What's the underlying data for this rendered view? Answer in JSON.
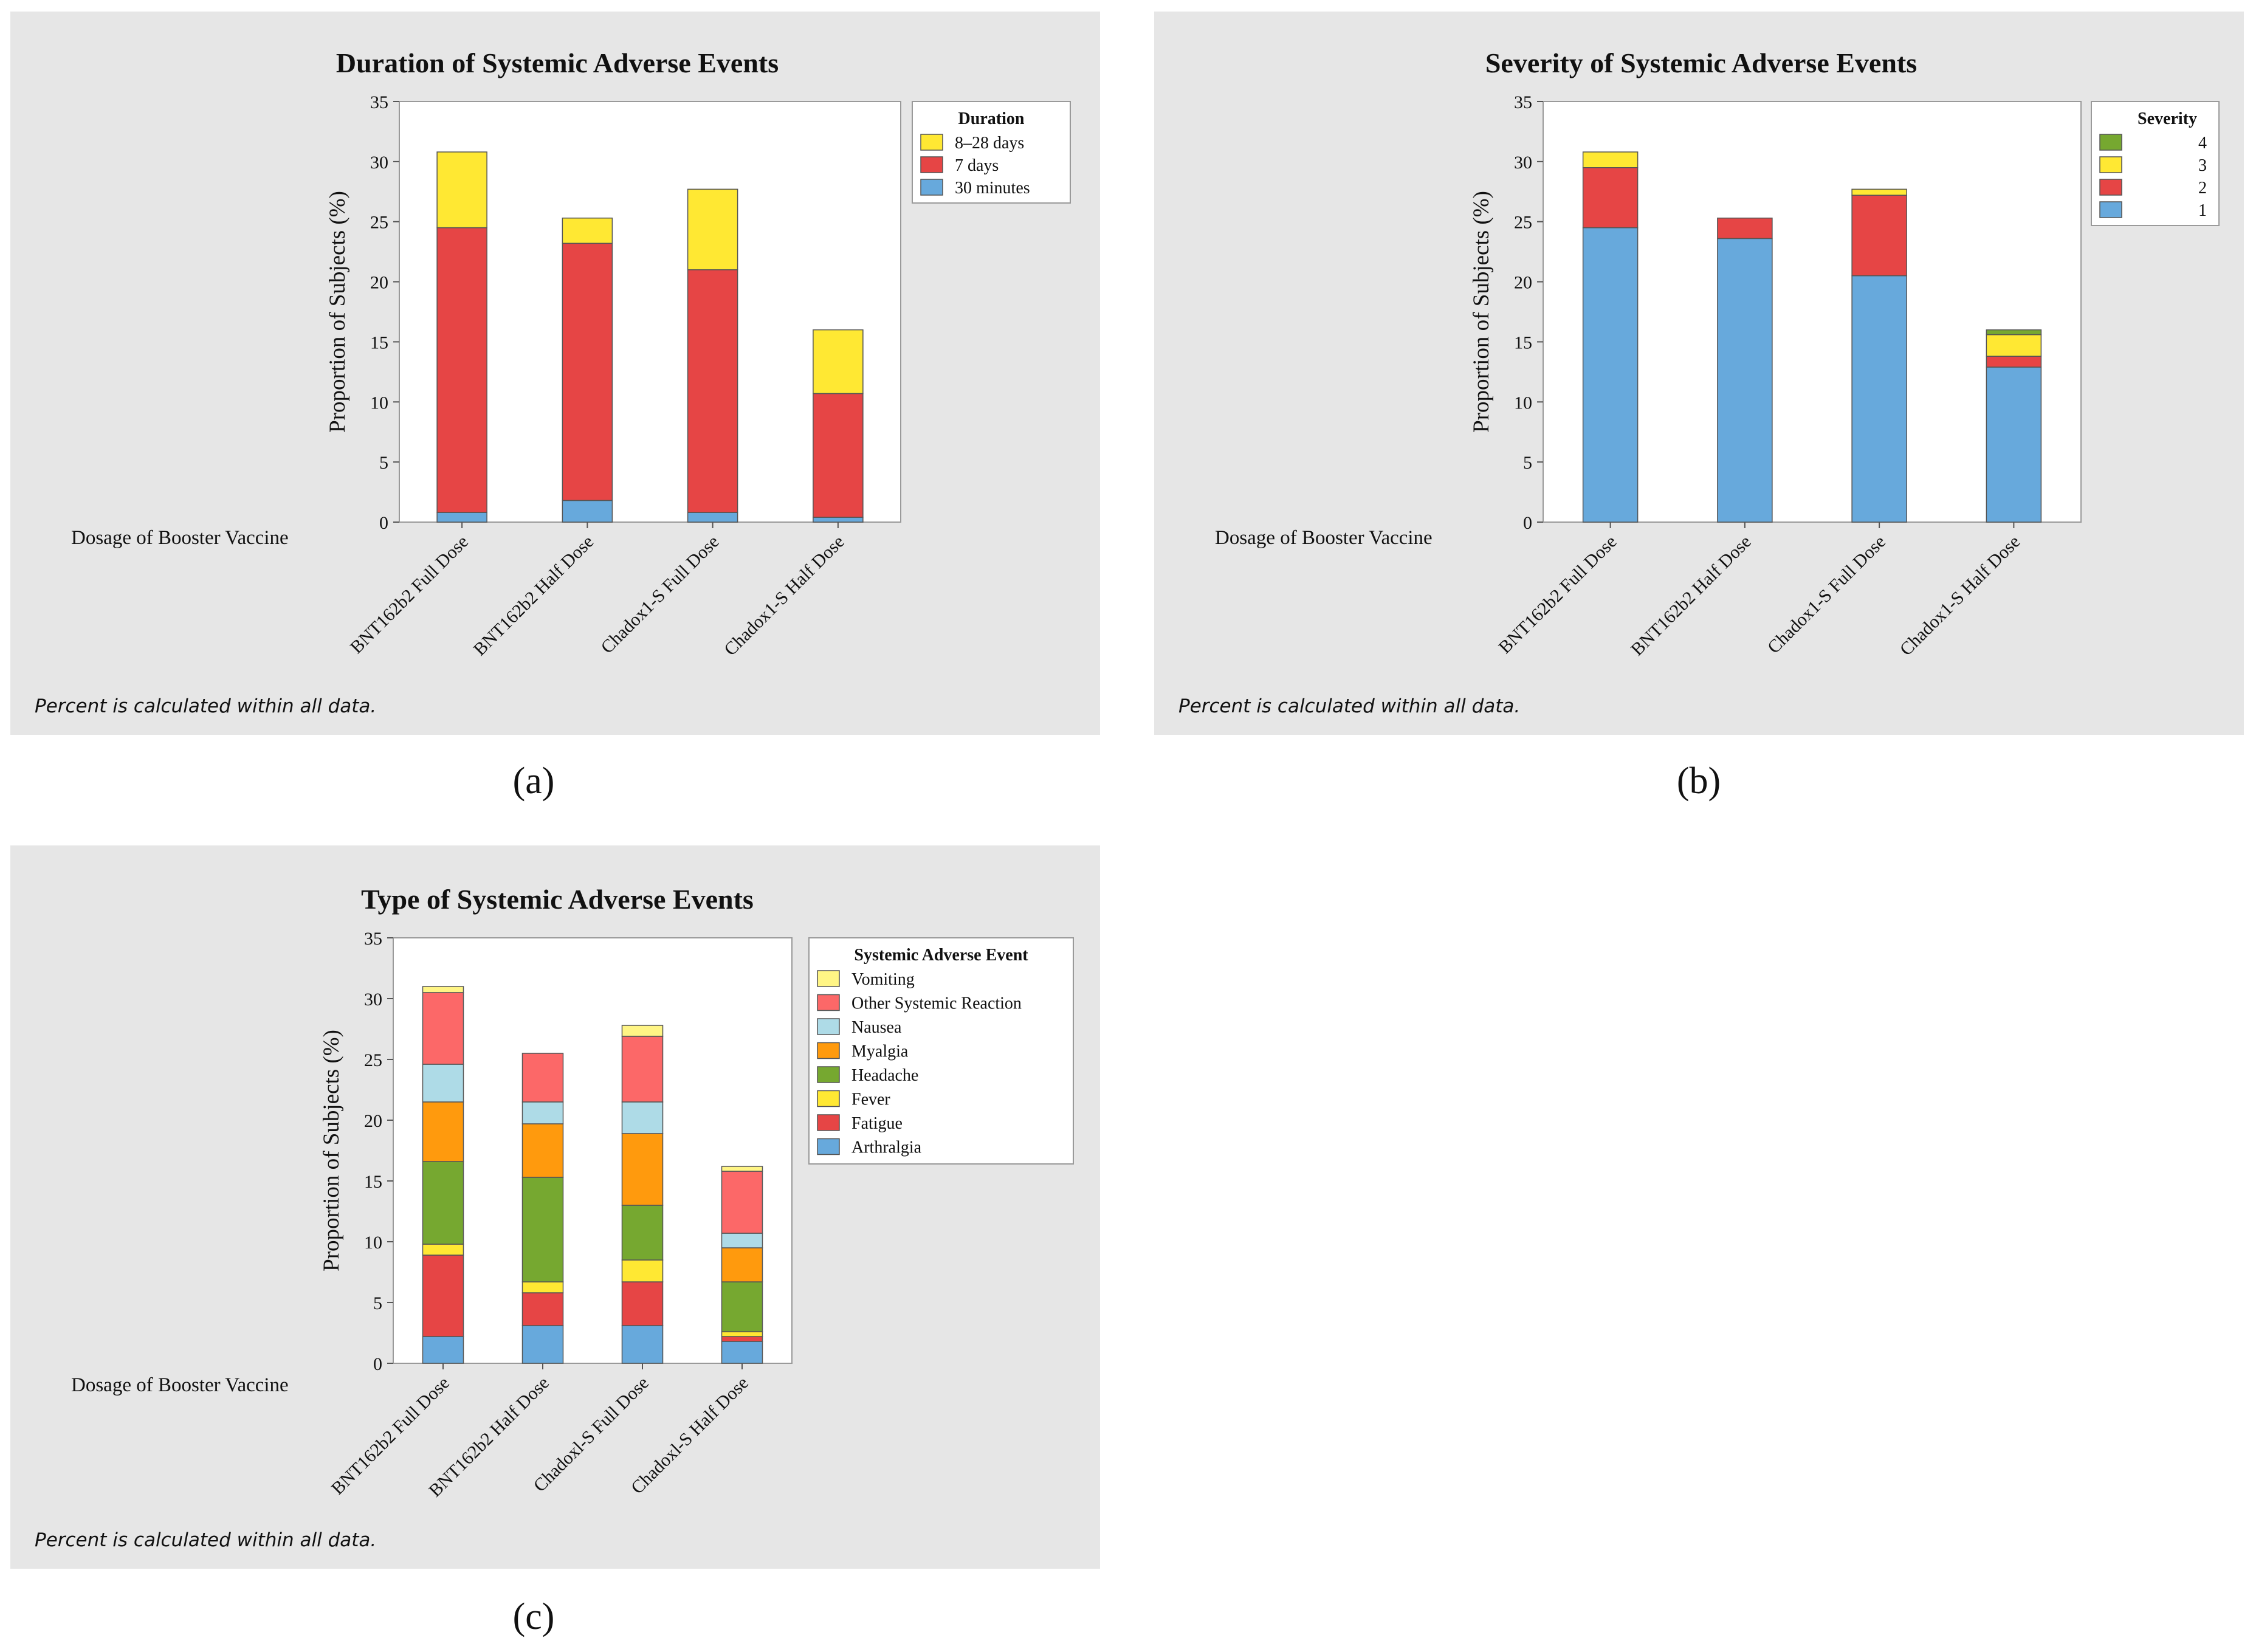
{
  "footnote": "Percent is calculated within all data.",
  "xaxis_label": "Dosage of Booster Vaccine",
  "captions": [
    "(a)",
    "(b)",
    "(c)"
  ],
  "chart_data": [
    {
      "id": "a",
      "type": "bar",
      "stacked": true,
      "title": "Duration of Systemic Adverse Events",
      "ylabel": "Proportion of Subjects (%)",
      "xlabel": "Dosage of Booster Vaccine",
      "ylim": [
        0,
        35
      ],
      "yticks": [
        0,
        5,
        10,
        15,
        20,
        25,
        30,
        35
      ],
      "categories": [
        "BNT162b2 Full Dose",
        "BNT162b2 Half Dose",
        "Chadox1-S Full Dose",
        "Chadox1-S Half Dose"
      ],
      "legend_title": "Duration",
      "legend_position": "top-right",
      "series": [
        {
          "name": "30 minutes",
          "color": "#67a9dc",
          "values": [
            0.8,
            1.8,
            0.8,
            0.4
          ]
        },
        {
          "name": "7 days",
          "color": "#e64545",
          "values": [
            23.7,
            21.4,
            20.2,
            10.3
          ]
        },
        {
          "name": "8–28 days",
          "color": "#ffe833",
          "values": [
            6.3,
            2.1,
            6.7,
            5.3
          ]
        }
      ],
      "note": "Percent is calculated within all data."
    },
    {
      "id": "b",
      "type": "bar",
      "stacked": true,
      "title": "Severity of Systemic Adverse Events",
      "ylabel": "Proportion of Subjects (%)",
      "xlabel": "Dosage of Booster Vaccine",
      "ylim": [
        0,
        35
      ],
      "yticks": [
        0,
        5,
        10,
        15,
        20,
        25,
        30,
        35
      ],
      "categories": [
        "BNT162b2 Full Dose",
        "BNT162b2 Half Dose",
        "Chadox1-S Full Dose",
        "Chadox1-S Half Dose"
      ],
      "legend_title": "Severity",
      "legend_position": "top-right",
      "series": [
        {
          "name": "1",
          "color": "#67a9dc",
          "values": [
            24.5,
            23.6,
            20.5,
            12.9
          ]
        },
        {
          "name": "2",
          "color": "#e64545",
          "values": [
            5.0,
            1.7,
            6.7,
            0.9
          ]
        },
        {
          "name": "3",
          "color": "#ffe833",
          "values": [
            1.3,
            0.0,
            0.5,
            1.8
          ]
        },
        {
          "name": "4",
          "color": "#76a830",
          "values": [
            0.0,
            0.0,
            0.0,
            0.4
          ]
        }
      ],
      "note": "Percent is calculated within all data."
    },
    {
      "id": "c",
      "type": "bar",
      "stacked": true,
      "title": "Type of Systemic Adverse Events",
      "ylabel": "Proportion of Subjects (%)",
      "xlabel": "Dosage of Booster Vaccine",
      "ylim": [
        0,
        35
      ],
      "yticks": [
        0,
        5,
        10,
        15,
        20,
        25,
        30,
        35
      ],
      "categories": [
        "BNT162b2 Full Dose",
        "BNT162b2 Half Dose",
        "Chadoxl-S Full Dose",
        "Chadoxl-S Half Dose"
      ],
      "legend_title": "Systemic Adverse Event",
      "legend_position": "top-right",
      "series": [
        {
          "name": "Arthralgia",
          "color": "#67a9dc",
          "values": [
            2.2,
            3.1,
            3.1,
            1.8
          ]
        },
        {
          "name": "Fatigue",
          "color": "#e64545",
          "values": [
            6.7,
            2.7,
            3.6,
            0.4
          ]
        },
        {
          "name": "Fever",
          "color": "#ffe833",
          "values": [
            0.9,
            0.9,
            1.8,
            0.4
          ]
        },
        {
          "name": "Headache",
          "color": "#76a830",
          "values": [
            6.8,
            8.6,
            4.5,
            4.1
          ]
        },
        {
          "name": "Myalgia",
          "color": "#ff9a0d",
          "values": [
            4.9,
            4.4,
            5.9,
            2.8
          ]
        },
        {
          "name": "Nausea",
          "color": "#aedbe7",
          "values": [
            3.1,
            1.8,
            2.6,
            1.2
          ]
        },
        {
          "name": "Other Systemic Reaction",
          "color": "#fc6868",
          "values": [
            5.9,
            4.0,
            5.4,
            5.1
          ]
        },
        {
          "name": "Vomiting",
          "color": "#fff585",
          "values": [
            0.5,
            0.0,
            0.9,
            0.4
          ]
        }
      ],
      "note": "Percent is calculated within all data."
    }
  ]
}
